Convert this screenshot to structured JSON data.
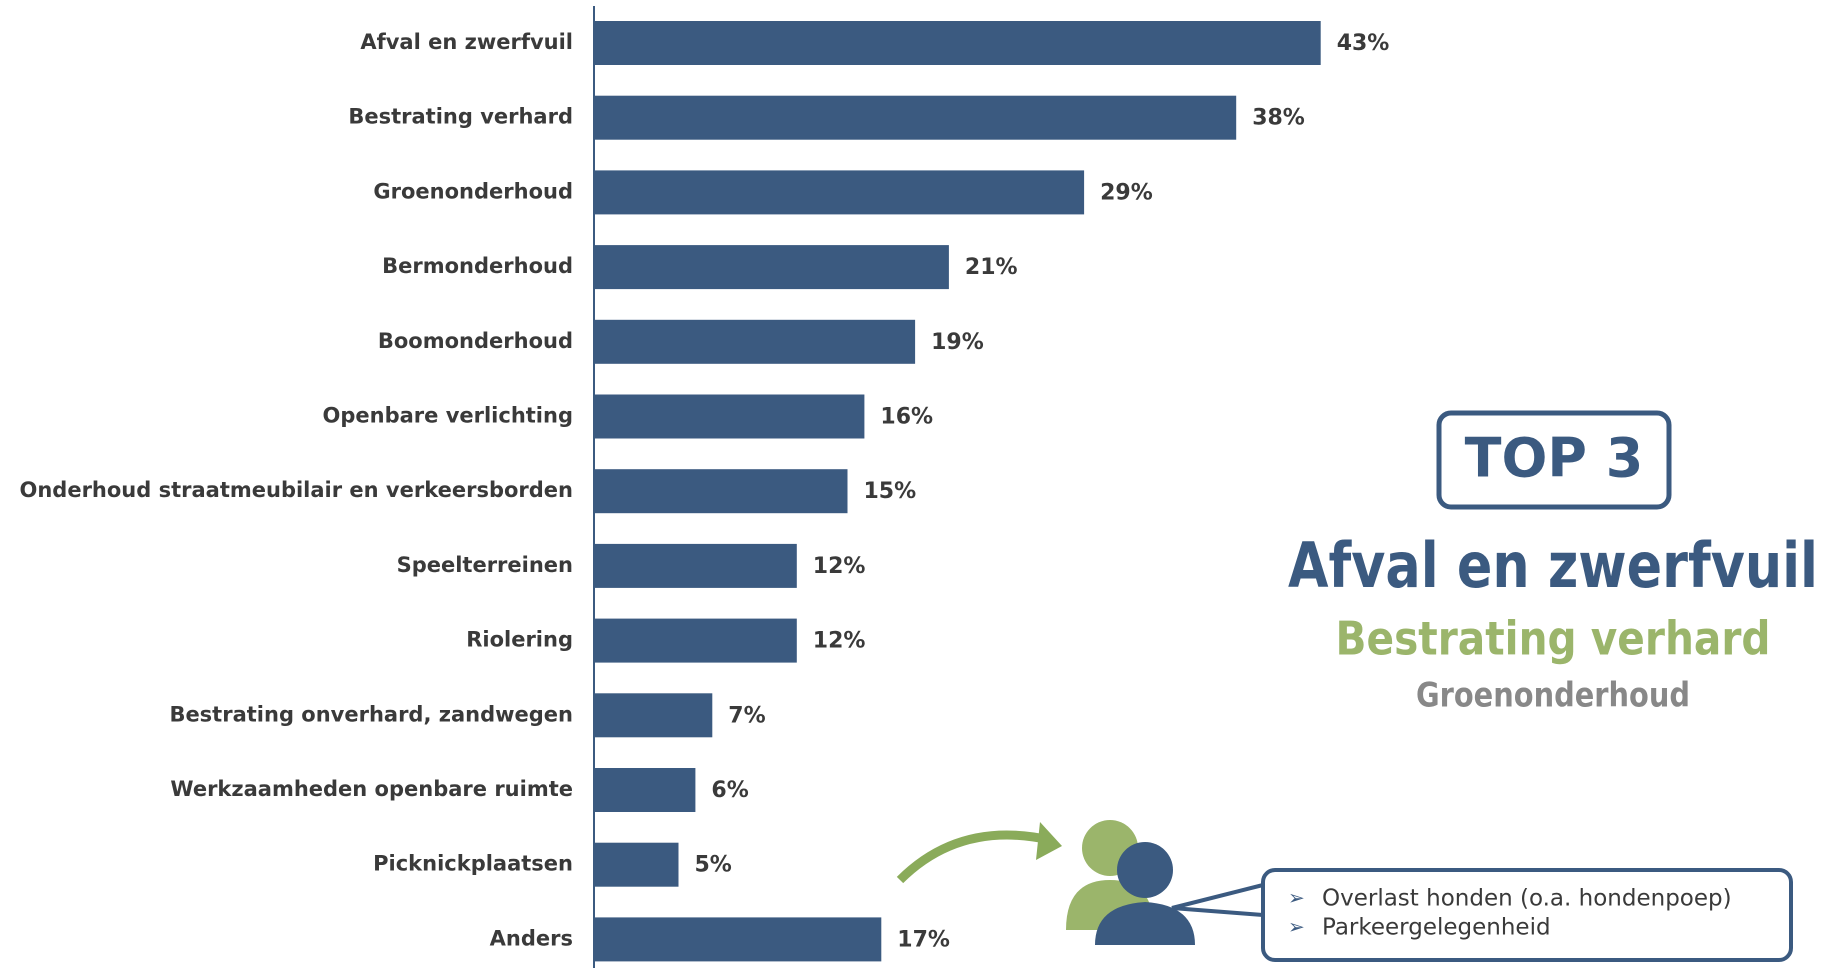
{
  "chart_data": {
    "type": "bar",
    "orientation": "horizontal",
    "color": "#3b5a80",
    "categories": [
      "Afval en zwerfvuil",
      "Bestrating verhard",
      "Groenonderhoud",
      "Bermonderhoud",
      "Boomonderhoud",
      "Openbare verlichting",
      "Onderhoud straatmeubilair en verkeersborden",
      "Speelterreinen",
      "Riolering",
      "Bestrating onverhard, zandwegen",
      "Werkzaamheden openbare ruimte",
      "Picknickplaatsen",
      "Anders"
    ],
    "values": [
      43,
      38,
      29,
      21,
      19,
      16,
      15,
      12,
      12,
      7,
      6,
      5,
      17
    ],
    "value_labels": [
      "43%",
      "38%",
      "29%",
      "21%",
      "19%",
      "16%",
      "15%",
      "12%",
      "12%",
      "7%",
      "6%",
      "5%",
      "17%"
    ]
  },
  "top3": {
    "title": "TOP 3",
    "items": [
      "Afval en zwerfvuil",
      "Bestrating verhard",
      "Groenonderhoud"
    ]
  },
  "callout": {
    "items": [
      "Overlast honden (o.a. hondenpoep)",
      "Parkeergelegenheid"
    ]
  }
}
